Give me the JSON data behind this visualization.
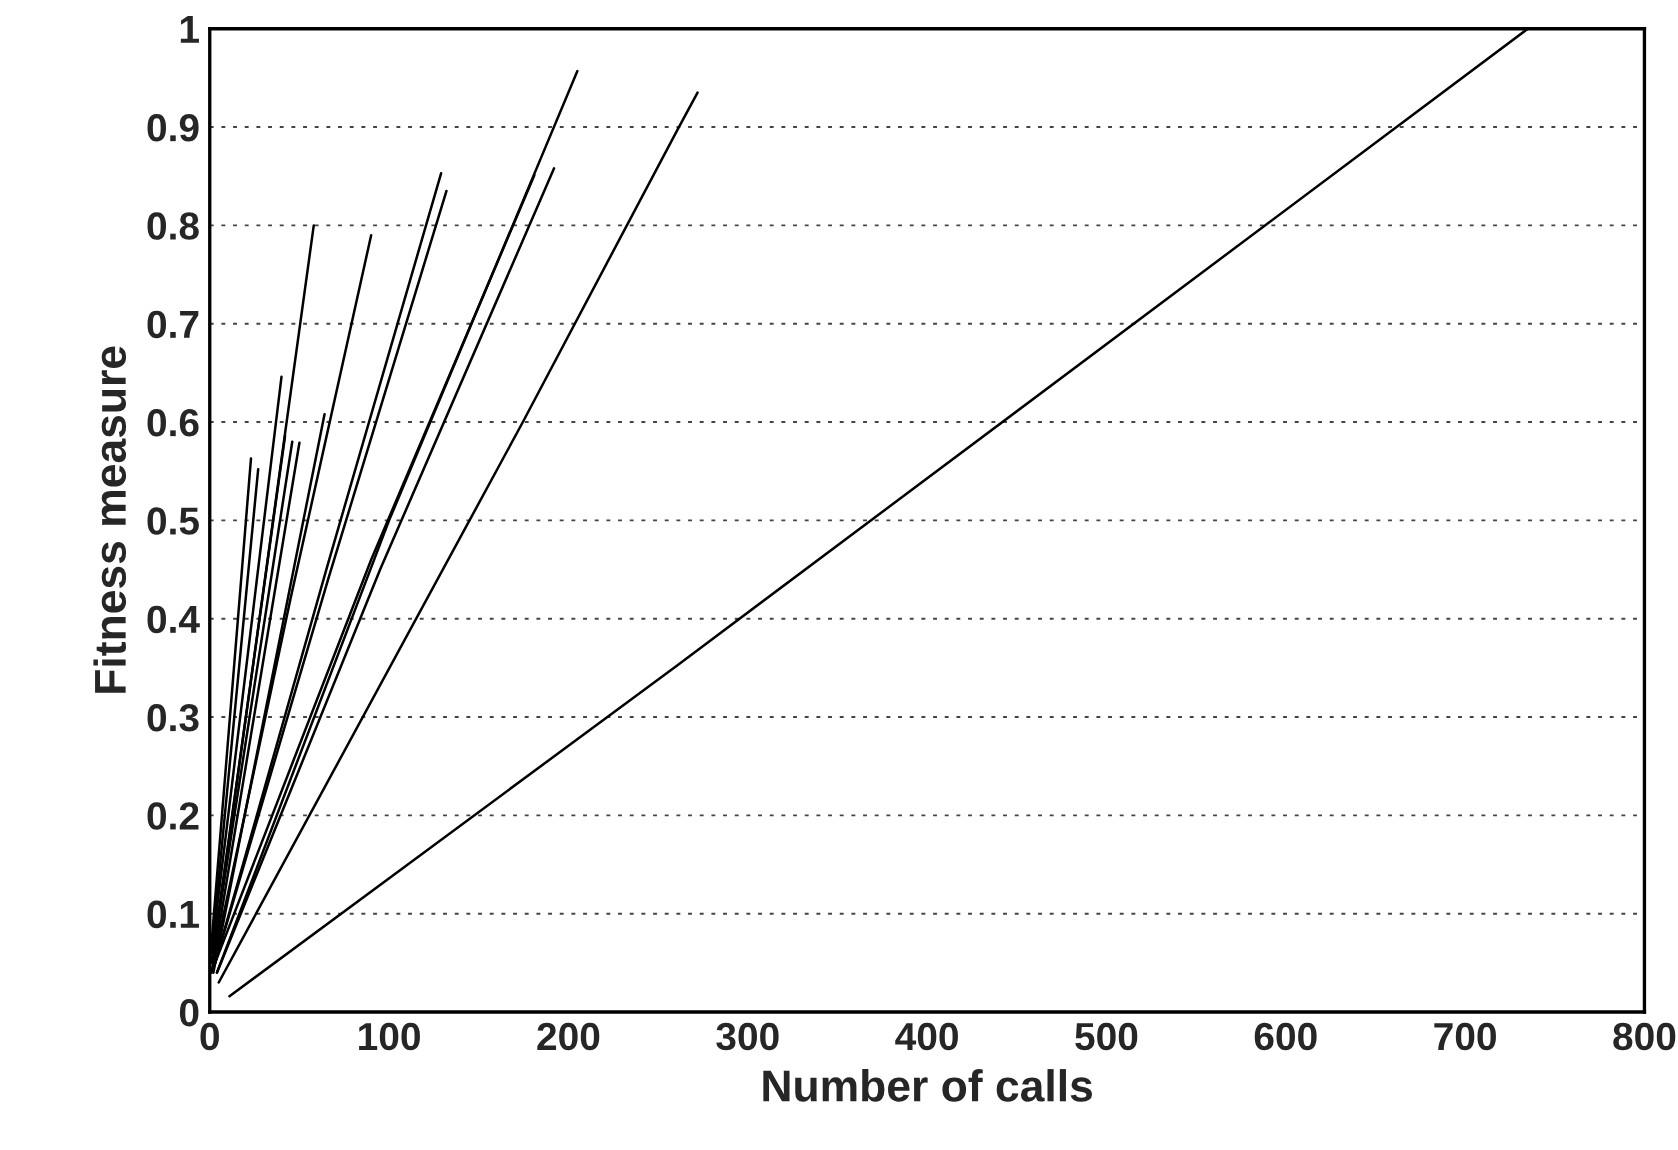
{
  "chart_data": {
    "type": "line",
    "xlabel": "Number of calls",
    "ylabel": "Fitness measure",
    "xlim": [
      0,
      800
    ],
    "ylim": [
      0,
      1
    ],
    "xticks": [
      0,
      100,
      200,
      300,
      400,
      500,
      600,
      700,
      800
    ],
    "yticks": [
      0,
      0.1,
      0.2,
      0.3,
      0.4,
      0.5,
      0.6,
      0.7,
      0.8,
      0.9,
      1
    ],
    "grid": "y",
    "marker": "none",
    "line_style": "solid",
    "series": [
      {
        "color": "#000000",
        "x": [
          11,
          261,
          735
        ],
        "values": [
          0.016,
          0.353,
          1.0
        ]
      },
      {
        "color": "#000000",
        "x": [
          5,
          174,
          261,
          272
        ],
        "values": [
          0.03,
          0.598,
          0.898,
          0.935
        ]
      },
      {
        "color": "#000000",
        "x": [
          4,
          100,
          205
        ],
        "values": [
          0.04,
          0.5,
          0.957
        ]
      },
      {
        "color": "#000000",
        "x": [
          4,
          95,
          192
        ],
        "values": [
          0.04,
          0.45,
          0.858
        ]
      },
      {
        "color": "#000000",
        "x": [
          3,
          90,
          181
        ],
        "values": [
          0.05,
          0.46,
          0.851
        ]
      },
      {
        "color": "#000000",
        "x": [
          3,
          65,
          129
        ],
        "values": [
          0.05,
          0.45,
          0.853
        ]
      },
      {
        "color": "#000000",
        "x": [
          3,
          66,
          132
        ],
        "values": [
          0.05,
          0.44,
          0.835
        ]
      },
      {
        "color": "#000000",
        "x": [
          2,
          45,
          90
        ],
        "values": [
          0.05,
          0.42,
          0.79
        ]
      },
      {
        "color": "#000000",
        "x": [
          2,
          58
        ],
        "values": [
          0.06,
          0.8
        ]
      },
      {
        "color": "#000000",
        "x": [
          2,
          64
        ],
        "values": [
          0.04,
          0.608
        ]
      },
      {
        "color": "#000000",
        "x": [
          1,
          40
        ],
        "values": [
          0.06,
          0.646
        ]
      },
      {
        "color": "#000000",
        "x": [
          1,
          42
        ],
        "values": [
          0.05,
          0.586
        ]
      },
      {
        "color": "#000000",
        "x": [
          1,
          50
        ],
        "values": [
          0.04,
          0.579
        ]
      },
      {
        "color": "#000000",
        "x": [
          1,
          46
        ],
        "values": [
          0.05,
          0.58
        ]
      },
      {
        "color": "#000000",
        "x": [
          1,
          23
        ],
        "values": [
          0.07,
          0.563
        ]
      },
      {
        "color": "#000000",
        "x": [
          1,
          27
        ],
        "values": [
          0.06,
          0.552
        ]
      }
    ]
  }
}
